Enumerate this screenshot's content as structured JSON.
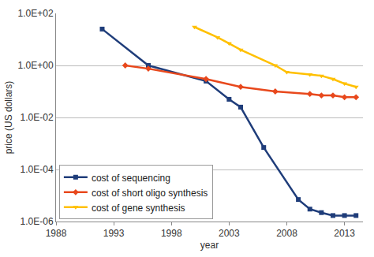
{
  "chart_data": {
    "type": "line",
    "x_label": "year",
    "y_label": "price (US dollars)",
    "log": "y",
    "grid": true,
    "legend": "lower left",
    "xlim": [
      1988,
      2014.6
    ],
    "xticks": [
      1988,
      1993,
      1998,
      2003,
      2008,
      2013
    ],
    "ylim": [
      1e-06,
      100
    ],
    "yticks": [
      {
        "value": 1e-06,
        "label": "1.0E-06"
      },
      {
        "value": 0.0001,
        "label": "1.0E-04"
      },
      {
        "value": 0.01,
        "label": "1.0E-02"
      },
      {
        "value": 1,
        "label": "1.0E+00"
      },
      {
        "value": 100,
        "label": "1.0E+02"
      }
    ],
    "series": [
      {
        "name": "cost of sequencing",
        "color": "#1f3d7a",
        "marker": "square",
        "line_style": "solid",
        "x": [
          1992,
          1996,
          2001,
          2003,
          2004,
          2006,
          2009,
          2010,
          2011,
          2012,
          2013,
          2014
        ],
        "values": [
          25,
          1.0,
          0.25,
          0.05,
          0.025,
          0.0007,
          7e-06,
          3e-06,
          2.2e-06,
          1.7e-06,
          1.7e-06,
          1.7e-06
        ]
      },
      {
        "name": "cost of short oligo synthesis",
        "color": "#e8481c",
        "marker": "diamond",
        "line_style": "solid",
        "x": [
          1994,
          1996,
          2001,
          2004,
          2007,
          2010,
          2011,
          2012,
          2013,
          2014
        ],
        "values": [
          1.0,
          0.75,
          0.3,
          0.15,
          0.1,
          0.08,
          0.07,
          0.07,
          0.06,
          0.06
        ]
      },
      {
        "name": "cost of gene synthesis",
        "color": "#ffc000",
        "marker": "triangle-down",
        "line_style": "solid",
        "x": [
          2000,
          2002,
          2003,
          2004,
          2007,
          2008,
          2010,
          2011,
          2012,
          2013,
          2014
        ],
        "values": [
          30,
          12,
          7,
          4,
          1.0,
          0.55,
          0.45,
          0.4,
          0.3,
          0.2,
          0.15
        ]
      }
    ]
  }
}
